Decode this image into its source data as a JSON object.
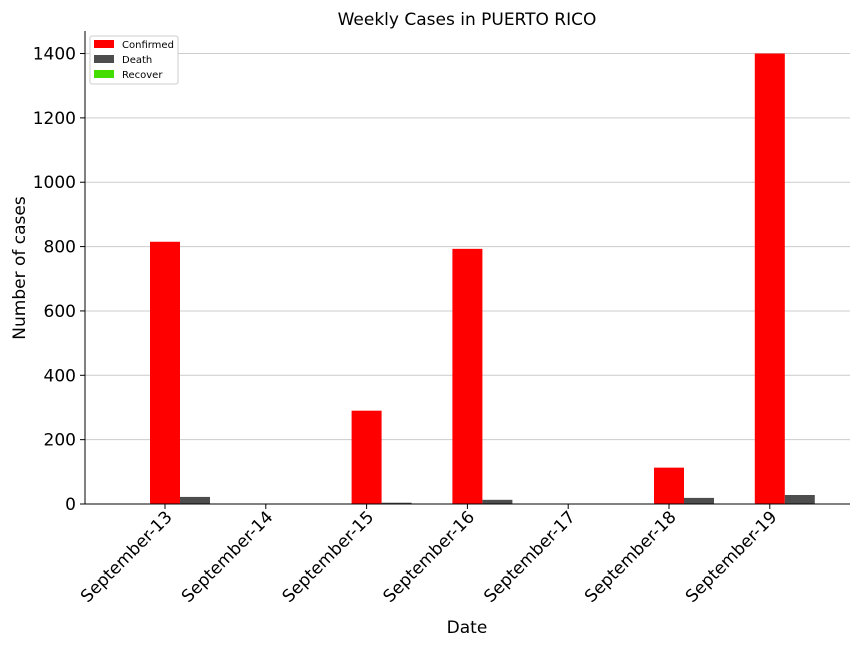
{
  "chart_data": {
    "type": "bar",
    "title": "Weekly Cases in PUERTO RICO",
    "xlabel": "Date",
    "ylabel": "Number of cases",
    "categories": [
      "September-13",
      "September-14",
      "September-15",
      "September-16",
      "September-17",
      "September-18",
      "September-19"
    ],
    "series": [
      {
        "name": "Confirmed",
        "color": "#ff0000",
        "values": [
          815,
          0,
          290,
          793,
          0,
          113,
          1400
        ]
      },
      {
        "name": "Death",
        "color": "#4d4d4d",
        "values": [
          22,
          0,
          4,
          13,
          0,
          19,
          28
        ]
      },
      {
        "name": "Recover",
        "color": "#44dd00",
        "values": [
          0,
          0,
          0,
          0,
          0,
          0,
          0
        ]
      }
    ],
    "ylim": [
      0,
      1470
    ],
    "yticks": [
      0,
      200,
      400,
      600,
      800,
      1000,
      1200,
      1400
    ],
    "grid": "horizontal",
    "legend_position": "top-left"
  }
}
